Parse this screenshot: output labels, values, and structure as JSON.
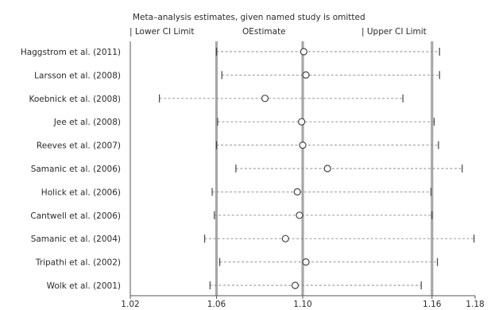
{
  "chart_data": {
    "type": "scatter",
    "title": "Meta–analysis estimates, given named study is omitted",
    "legend": {
      "lower": "| Lower CI Limit",
      "estimate": "OEstimate",
      "upper": "| Upper CI Limit",
      "placement": "top"
    },
    "xlim": [
      1.02,
      1.18
    ],
    "xticks": [
      "1.02",
      "1.06",
      "1.10",
      "1.16",
      "1.18"
    ],
    "xtick_values": [
      1.02,
      1.06,
      1.1,
      1.16,
      1.18
    ],
    "reference_lines": [
      1.06,
      1.1,
      1.16
    ],
    "grid": false,
    "studies": [
      {
        "label": "Haggstrom et al. (2011)",
        "lower": 1.06,
        "estimate": 1.1005,
        "upper": 1.1635
      },
      {
        "label": "Larsson et al. (2008)",
        "lower": 1.0625,
        "estimate": 1.1015,
        "upper": 1.1635
      },
      {
        "label": "Koebnick et al. (2008)",
        "lower": 1.0335,
        "estimate": 1.0825,
        "upper": 1.1465
      },
      {
        "label": "Jee et al. (2008)",
        "lower": 1.0605,
        "estimate": 1.0995,
        "upper": 1.161
      },
      {
        "label": "Reeves et al. (2007)",
        "lower": 1.06,
        "estimate": 1.1,
        "upper": 1.163
      },
      {
        "label": "Samanic et al. (2006)",
        "lower": 1.069,
        "estimate": 1.1115,
        "upper": 1.174
      },
      {
        "label": "Holick et al. (2006)",
        "lower": 1.058,
        "estimate": 1.0975,
        "upper": 1.1595
      },
      {
        "label": "Cantwell et al. (2006)",
        "lower": 1.059,
        "estimate": 1.0985,
        "upper": 1.16
      },
      {
        "label": "Samanic et al. (2004)",
        "lower": 1.0545,
        "estimate": 1.092,
        "upper": 1.1795
      },
      {
        "label": "Tripathi et al. (2002)",
        "lower": 1.0615,
        "estimate": 1.1015,
        "upper": 1.1625
      },
      {
        "label": "Wolk et al. (2001)",
        "lower": 1.057,
        "estimate": 1.0965,
        "upper": 1.155
      }
    ]
  }
}
